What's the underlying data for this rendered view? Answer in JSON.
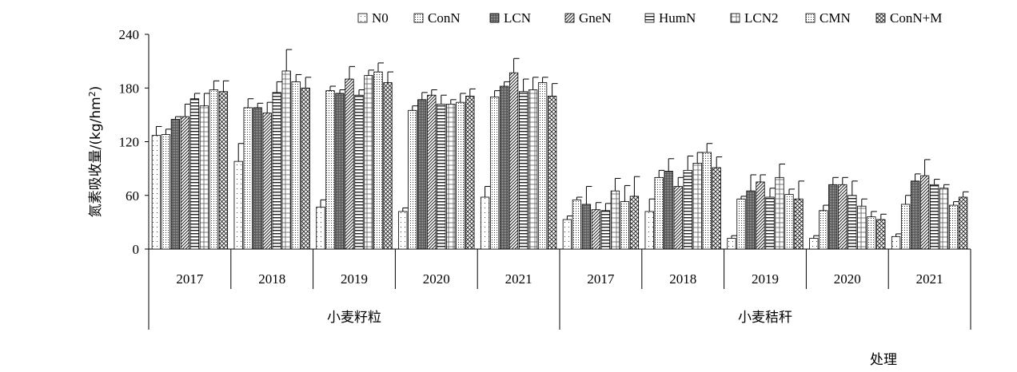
{
  "chart_data": {
    "type": "bar",
    "ylabel": "氮素吸收量/(kg/hm",
    "ylabel_sup": "2",
    "ylabel_close": ")",
    "xlabel": "处理",
    "ylim": [
      0,
      240
    ],
    "yticks": [
      "0",
      "60",
      "120",
      "180",
      "240"
    ],
    "grid": false,
    "legend_position": "top-right",
    "groups": [
      {
        "label": "小麦籽粒",
        "years": [
          "2017",
          "2018",
          "2019",
          "2020",
          "2021"
        ]
      },
      {
        "label": "小麦秸秆",
        "years": [
          "2017",
          "2018",
          "2019",
          "2020",
          "2021"
        ]
      }
    ],
    "categories": [
      "小麦籽粒 2017",
      "小麦籽粒 2018",
      "小麦籽粒 2019",
      "小麦籽粒 2020",
      "小麦籽粒 2021",
      "小麦秸秆 2017",
      "小麦秸秆 2018",
      "小麦秸秆 2019",
      "小麦秸秆 2020",
      "小麦秸秆 2021"
    ],
    "series": [
      {
        "name": "N0",
        "pattern": "dots-sparse",
        "values": [
          127,
          98,
          47,
          42,
          58,
          33,
          42,
          12,
          12,
          14
        ],
        "errors": [
          10,
          20,
          8,
          4,
          12,
          4,
          14,
          3,
          3,
          3
        ]
      },
      {
        "name": "ConN",
        "pattern": "dots-dense",
        "values": [
          128,
          158,
          177,
          155,
          170,
          55,
          80,
          56,
          43,
          50
        ],
        "errors": [
          6,
          10,
          5,
          5,
          7,
          3,
          8,
          3,
          6,
          10
        ]
      },
      {
        "name": "LCN",
        "pattern": "dark-dense",
        "values": [
          145,
          158,
          174,
          167,
          182,
          50,
          87,
          65,
          72,
          76
        ],
        "errors": [
          3,
          5,
          4,
          8,
          5,
          20,
          14,
          18,
          8,
          8
        ]
      },
      {
        "name": "GneN",
        "pattern": "diagonal",
        "values": [
          148,
          152,
          190,
          172,
          197,
          44,
          70,
          75,
          72,
          82
        ],
        "errors": [
          14,
          12,
          14,
          6,
          16,
          8,
          10,
          8,
          8,
          18
        ]
      },
      {
        "name": "HumN",
        "pattern": "horizontal",
        "values": [
          168,
          175,
          172,
          162,
          176,
          43,
          88,
          58,
          60,
          72
        ],
        "errors": [
          6,
          12,
          6,
          10,
          14,
          8,
          16,
          10,
          16,
          6
        ]
      },
      {
        "name": "LCN2",
        "pattern": "cross-light",
        "values": [
          160,
          199,
          194,
          162,
          178,
          65,
          96,
          80,
          48,
          68
        ],
        "errors": [
          14,
          24,
          6,
          5,
          14,
          14,
          12,
          15,
          8,
          4
        ]
      },
      {
        "name": "CMN",
        "pattern": "dots-dense",
        "values": [
          178,
          187,
          198,
          164,
          186,
          53,
          108,
          61,
          36,
          49
        ],
        "errors": [
          10,
          8,
          10,
          10,
          6,
          18,
          10,
          6,
          6,
          4
        ]
      },
      {
        "name": "ConN+M",
        "pattern": "crosshatch",
        "values": [
          176,
          180,
          186,
          171,
          171,
          59,
          91,
          56,
          33,
          58
        ],
        "errors": [
          12,
          12,
          12,
          8,
          14,
          22,
          12,
          20,
          6,
          6
        ]
      }
    ]
  }
}
